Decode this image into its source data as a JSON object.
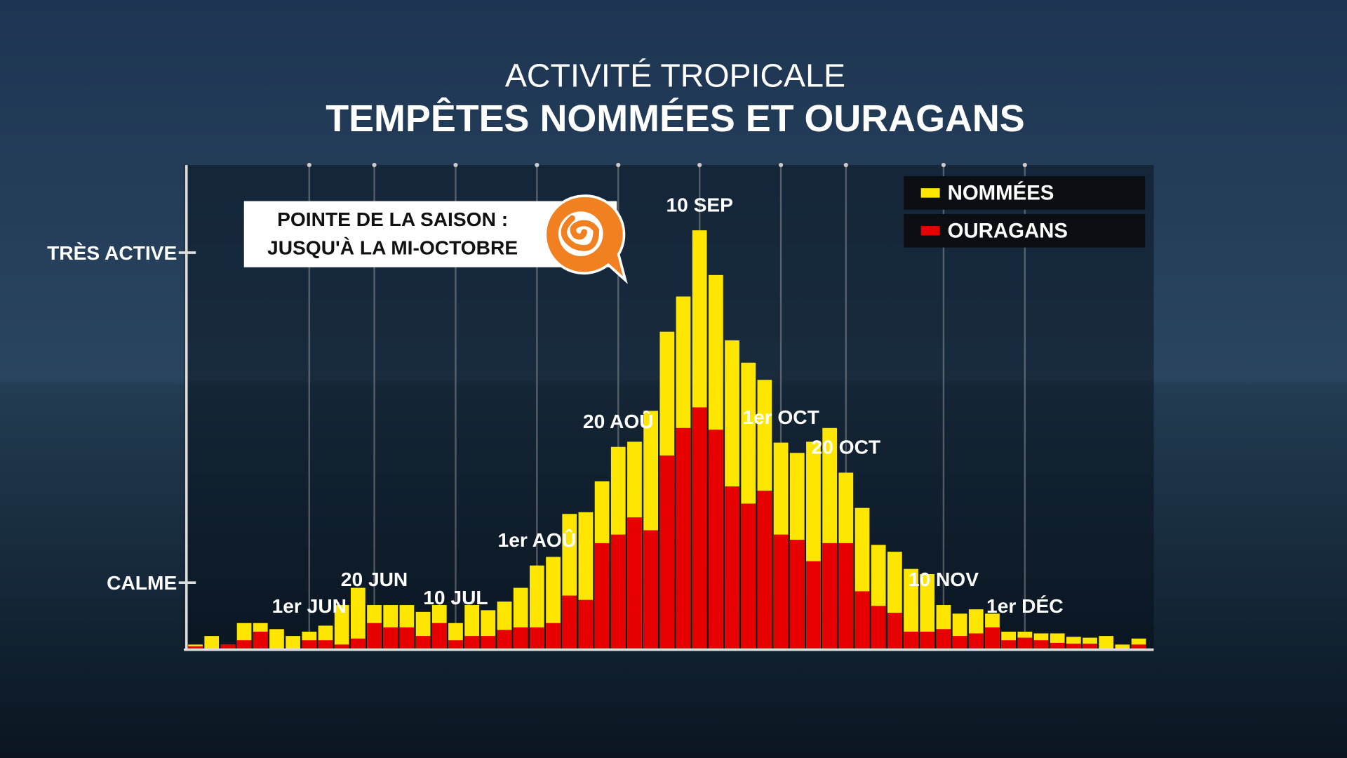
{
  "chart_data": {
    "type": "overlapping-bar",
    "supertitle": "ACTIVITÉ TROPICALE",
    "title": "TEMPÊTES  NOMMÉES ET OURAGANS",
    "callout": [
      "POINTE DE LA SAISON :",
      "JUSQU'À LA MI-OCTOBRE"
    ],
    "categories": [
      null,
      null,
      null,
      null,
      null,
      null,
      null,
      "1er JUN",
      null,
      null,
      null,
      "20 JUN",
      null,
      null,
      null,
      null,
      "10 JUL",
      null,
      null,
      null,
      null,
      "1er AOÛ",
      null,
      null,
      null,
      null,
      "20 AOÛ",
      null,
      null,
      null,
      null,
      "10 SEP",
      null,
      null,
      null,
      null,
      "1er OCT",
      null,
      null,
      null,
      "20 OCT",
      null,
      null,
      null,
      null,
      null,
      "10 NOV",
      null,
      null,
      null,
      null,
      "1er DÉC",
      null,
      null,
      null,
      null,
      null,
      null,
      null
    ],
    "series": [
      {
        "name": "NOMMÉES",
        "color": "#ffe600",
        "values": [
          5,
          15,
          5,
          30,
          30,
          23,
          15,
          20,
          27,
          51,
          71,
          51,
          51,
          51,
          43,
          51,
          30,
          51,
          45,
          55,
          71,
          97,
          107,
          157,
          159,
          195,
          235,
          241,
          277,
          369,
          410,
          487,
          435,
          359,
          333,
          313,
          240,
          228,
          241,
          257,
          205,
          164,
          121,
          113,
          93,
          87,
          51,
          41,
          46,
          41,
          20,
          20,
          18,
          18,
          14,
          13,
          15,
          5,
          12
        ]
      },
      {
        "name": "OURAGANS",
        "color": "#e60000",
        "values": [
          3,
          0,
          5,
          10,
          20,
          0,
          0,
          10,
          10,
          5,
          12,
          30,
          25,
          25,
          15,
          30,
          10,
          15,
          15,
          22,
          25,
          25,
          30,
          62,
          57,
          123,
          133,
          153,
          138,
          225,
          257,
          281,
          255,
          189,
          169,
          184,
          133,
          127,
          102,
          123,
          123,
          67,
          50,
          42,
          20,
          20,
          23,
          15,
          18,
          25,
          10,
          13,
          10,
          7,
          6,
          6,
          0,
          0,
          5
        ]
      }
    ],
    "ylim": [
      0,
      563
    ],
    "yticks": [
      {
        "value": 77,
        "label": "CALME"
      },
      {
        "value": 461,
        "label": "TRÈS ACTIVE"
      }
    ],
    "grid": true,
    "legend": "top-right"
  }
}
